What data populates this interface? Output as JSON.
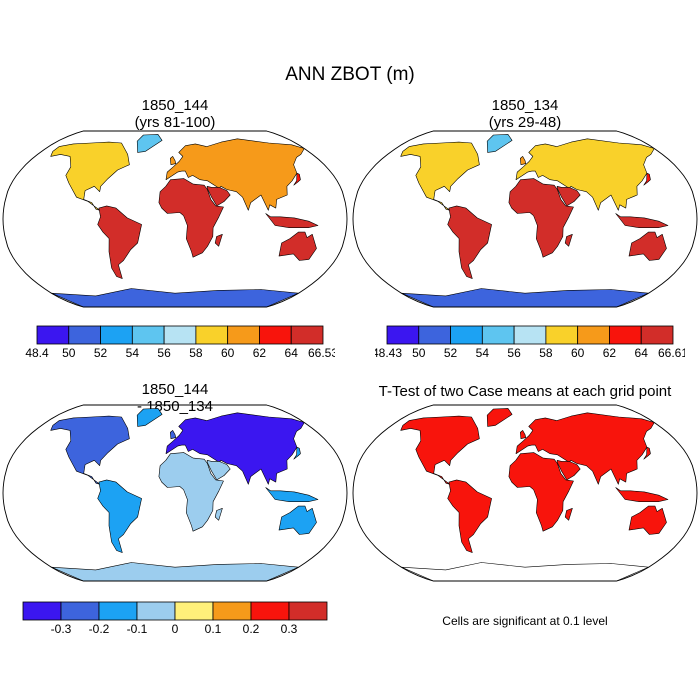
{
  "title": "ANN ZBOT (m)",
  "panels": [
    {
      "id": "case1",
      "title_line1": "1850_144",
      "title_line2": "(yrs 81-100)",
      "colorbar_labels": [
        "48.4",
        "50",
        "52",
        "54",
        "56",
        "58",
        "60",
        "62",
        "64",
        "66.53"
      ],
      "colorbar_colors": [
        "#3b16f0",
        "#3d64dd",
        "#1ca2f3",
        "#5ec5f0",
        "#b7e3f3",
        "#f9d12a",
        "#f69a1a",
        "#f8140c",
        "#d22d29"
      ]
    },
    {
      "id": "case2",
      "title_line1": "1850_134",
      "title_line2": "(yrs 29-48)",
      "colorbar_labels": [
        "48.43",
        "50",
        "52",
        "54",
        "56",
        "58",
        "60",
        "62",
        "64",
        "66.61"
      ],
      "colorbar_colors": [
        "#3b16f0",
        "#3d64dd",
        "#1ca2f3",
        "#5ec5f0",
        "#b7e3f3",
        "#f9d12a",
        "#f69a1a",
        "#f8140c",
        "#d22d29"
      ]
    },
    {
      "id": "diff",
      "title_line1": "1850_144",
      "title_line2": "- 1850_134",
      "colorbar_labels": [
        "-0.3",
        "-0.2",
        "-0.1",
        "0",
        "0.1",
        "0.2",
        "0.3"
      ],
      "colorbar_colors": [
        "#3b16f0",
        "#3d64dd",
        "#1ca2f3",
        "#9ccdee",
        "#fff07a",
        "#f69a1a",
        "#f8140c",
        "#d22d29"
      ]
    },
    {
      "id": "ttest",
      "title_line1": "T-Test of two Case means at each grid point",
      "note": "Cells are significant at 0.1 level",
      "significant_color": "#f8140c"
    }
  ]
}
